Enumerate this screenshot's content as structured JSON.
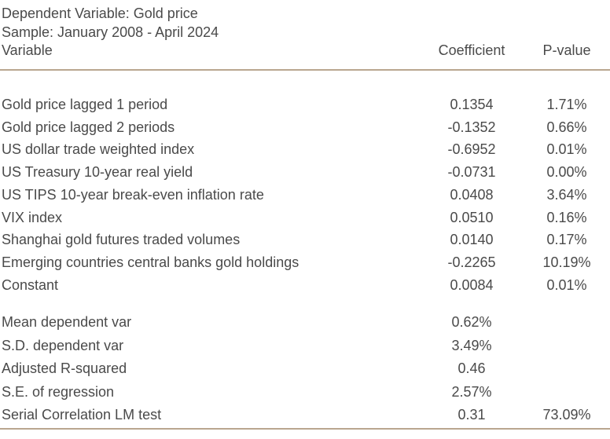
{
  "header": {
    "dependent": "Dependent Variable: Gold price",
    "sample": "Sample: January 2008 - April 2024",
    "col_variable": "Variable",
    "col_coefficient": "Coefficient",
    "col_pvalue": "P-value"
  },
  "coefficients": [
    {
      "variable": "Gold price lagged 1 period",
      "coefficient": "0.1354",
      "pvalue": "1.71%"
    },
    {
      "variable": "Gold price lagged 2 periods",
      "coefficient": "-0.1352",
      "pvalue": "0.66%"
    },
    {
      "variable": "US dollar trade weighted index",
      "coefficient": "-0.6952",
      "pvalue": "0.01%"
    },
    {
      "variable": "US Treasury 10-year real yield",
      "coefficient": "-0.0731",
      "pvalue": "0.00%"
    },
    {
      "variable": "US TIPS 10-year break-even inflation rate",
      "coefficient": "0.0408",
      "pvalue": "3.64%"
    },
    {
      "variable": "VIX index",
      "coefficient": "0.0510",
      "pvalue": "0.16%"
    },
    {
      "variable": "Shanghai gold futures traded volumes",
      "coefficient": "0.0140",
      "pvalue": "0.17%"
    },
    {
      "variable": "Emerging countries central banks gold holdings",
      "coefficient": "-0.2265",
      "pvalue": "10.19%"
    },
    {
      "variable": "Constant",
      "coefficient": "0.0084",
      "pvalue": "0.01%"
    }
  ],
  "statistics": [
    {
      "variable": "Mean dependent var",
      "coefficient": "0.62%",
      "pvalue": ""
    },
    {
      "variable": "S.D. dependent var",
      "coefficient": "3.49%",
      "pvalue": ""
    },
    {
      "variable": "Adjusted R-squared",
      "coefficient": "0.46",
      "pvalue": ""
    },
    {
      "variable": "S.E. of regression",
      "coefficient": "2.57%",
      "pvalue": ""
    },
    {
      "variable": "Serial Correlation LM test",
      "coefficient": "0.31",
      "pvalue": "73.09%"
    }
  ],
  "colors": {
    "rule": "#b9a68f",
    "text": "#4a4a4a"
  }
}
